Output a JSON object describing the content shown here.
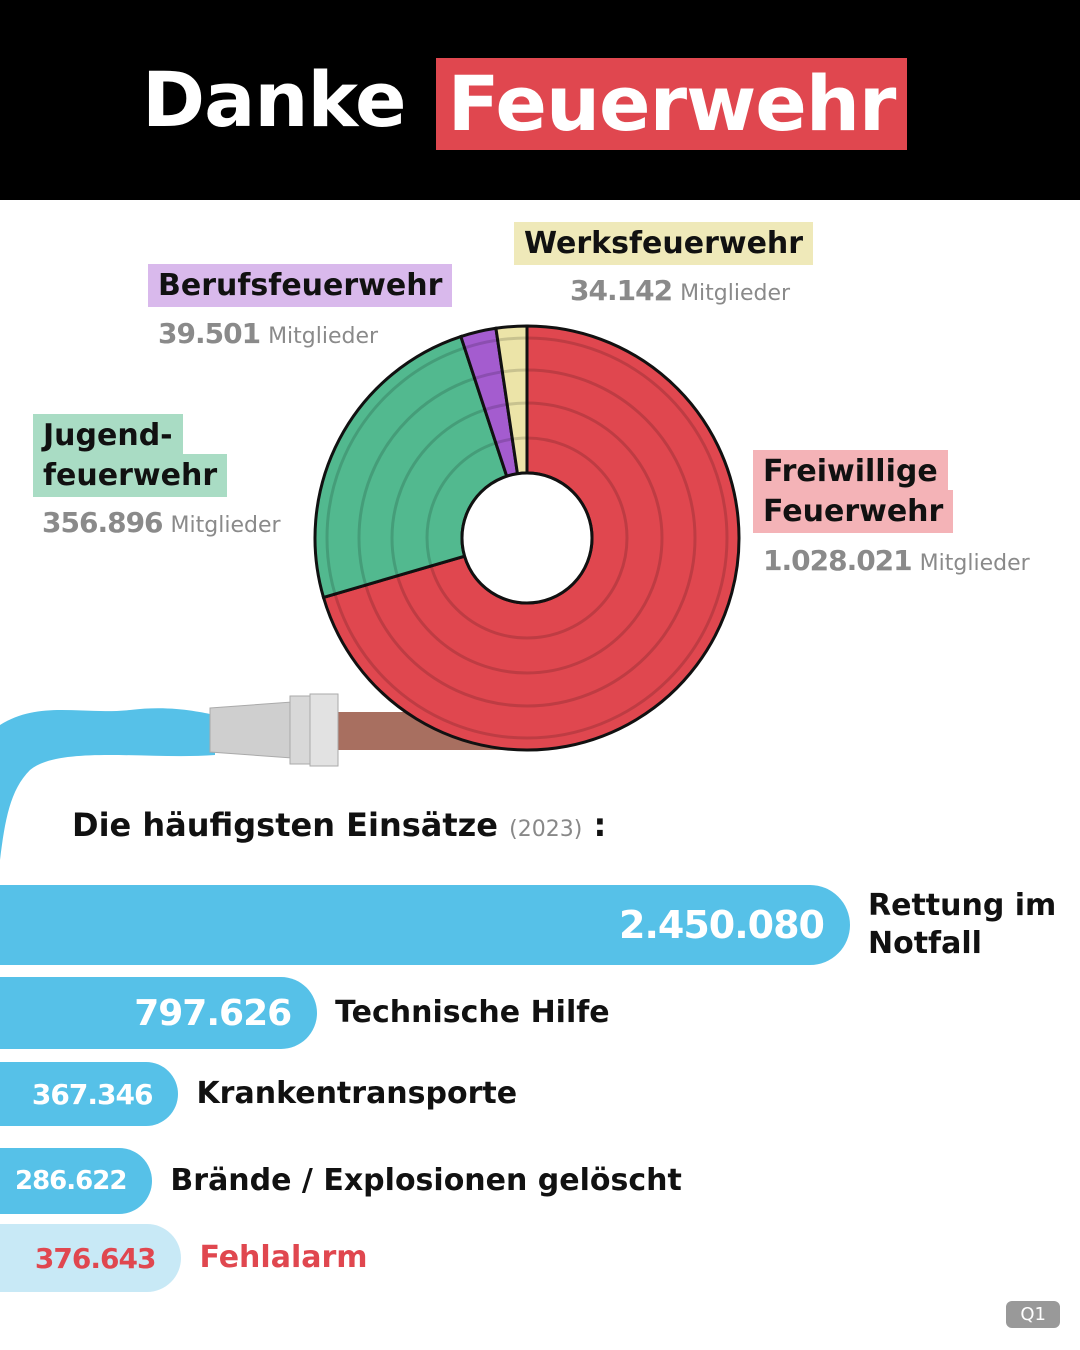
{
  "header": {
    "title": "Danke",
    "highlight": "Feuerwehr"
  },
  "chart_data": [
    {
      "type": "pie",
      "donut": true,
      "categories": [
        "Freiwillige\nFeuerwehr",
        "Jugend-\nfeuerwehr",
        "Berufsfeuerwehr",
        "Werksfeuerwehr"
      ],
      "values": [
        1028021,
        356896,
        39501,
        34142
      ],
      "value_labels": [
        "1.028.021",
        "356.896",
        "39.501",
        "34.142"
      ],
      "unit": "Mitglieder",
      "colors": [
        "#e0474f",
        "#52b98f",
        "#a45ccf",
        "#ece4a8"
      ],
      "label_colors": [
        "#f4b3b7",
        "#a9dcc4",
        "#d9b9ec",
        "#efe9b9"
      ]
    },
    {
      "type": "hbar",
      "title": "Die häufigsten Einsätze",
      "subtitle": "(2023)",
      "title_suffix": ":",
      "categories": [
        "Rettung im Notfall",
        "Technische Hilfe",
        "Krankentransporte",
        "Brände / Explosionen gelöscht",
        "Fehlalarm"
      ],
      "values": [
        2450080,
        797626,
        367346,
        286622,
        376643
      ],
      "value_labels": [
        "2.450.080",
        "797.626",
        "367.346",
        "286.622",
        "376.643"
      ],
      "colors": [
        "#56c1e8",
        "#56c1e8",
        "#56c1e8",
        "#56c1e8",
        "#c8e9f6"
      ],
      "value_label_colors": [
        "#ffffff",
        "#ffffff",
        "#ffffff",
        "#ffffff",
        "#e0474f"
      ],
      "category_colors": [
        "#111111",
        "#111111",
        "#111111",
        "#111111",
        "#e0474f"
      ]
    }
  ],
  "badge": "Q1"
}
